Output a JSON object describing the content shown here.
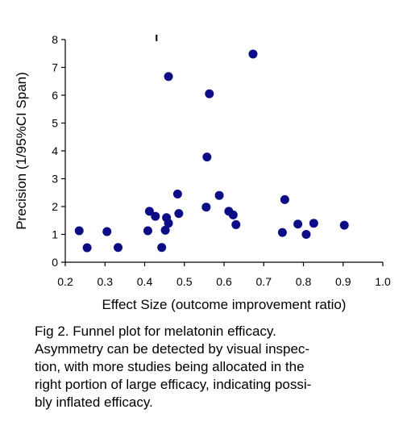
{
  "chart_data": {
    "type": "scatter",
    "title": "",
    "xlabel": "Effect Size (outcome improvement ratio)",
    "ylabel": "Precision (1/95%CI Span)",
    "xlim": [
      0.2,
      1.0
    ],
    "ylim": [
      0,
      8
    ],
    "x_ticks": [
      "0.2",
      "0.3",
      "0.4",
      "0.5",
      "0.6",
      "0.7",
      "0.8",
      "0.9",
      "1.0"
    ],
    "y_ticks": [
      "0",
      "1",
      "2",
      "3",
      "4",
      "5",
      "6",
      "7",
      "8"
    ],
    "grid": false,
    "legend": "none",
    "marker_color": "#0c0c86",
    "points": [
      {
        "x": 0.235,
        "y": 1.13
      },
      {
        "x": 0.255,
        "y": 0.52
      },
      {
        "x": 0.305,
        "y": 1.1
      },
      {
        "x": 0.333,
        "y": 0.53
      },
      {
        "x": 0.408,
        "y": 1.13
      },
      {
        "x": 0.412,
        "y": 1.83
      },
      {
        "x": 0.427,
        "y": 1.65
      },
      {
        "x": 0.443,
        "y": 0.53
      },
      {
        "x": 0.452,
        "y": 1.15
      },
      {
        "x": 0.455,
        "y": 1.6
      },
      {
        "x": 0.46,
        "y": 1.4
      },
      {
        "x": 0.46,
        "y": 6.67
      },
      {
        "x": 0.483,
        "y": 2.45
      },
      {
        "x": 0.486,
        "y": 1.75
      },
      {
        "x": 0.555,
        "y": 1.98
      },
      {
        "x": 0.557,
        "y": 3.78
      },
      {
        "x": 0.563,
        "y": 6.05
      },
      {
        "x": 0.588,
        "y": 2.4
      },
      {
        "x": 0.612,
        "y": 1.83
      },
      {
        "x": 0.623,
        "y": 1.7
      },
      {
        "x": 0.63,
        "y": 1.35
      },
      {
        "x": 0.673,
        "y": 7.48
      },
      {
        "x": 0.747,
        "y": 1.07
      },
      {
        "x": 0.753,
        "y": 2.25
      },
      {
        "x": 0.786,
        "y": 1.37
      },
      {
        "x": 0.807,
        "y": 1.0
      },
      {
        "x": 0.826,
        "y": 1.4
      },
      {
        "x": 0.903,
        "y": 1.33
      }
    ],
    "annotation_mark_x": 0.43
  },
  "caption": {
    "line1": "Fig 2. Funnel plot for melatonin efficacy.",
    "line2": "Asymmetry can be detected by visual inspec-",
    "line3": "tion, with more studies being allocated in the",
    "line4": "right portion of large efficacy, indicating possi-",
    "line5": "bly inflated efficacy."
  }
}
